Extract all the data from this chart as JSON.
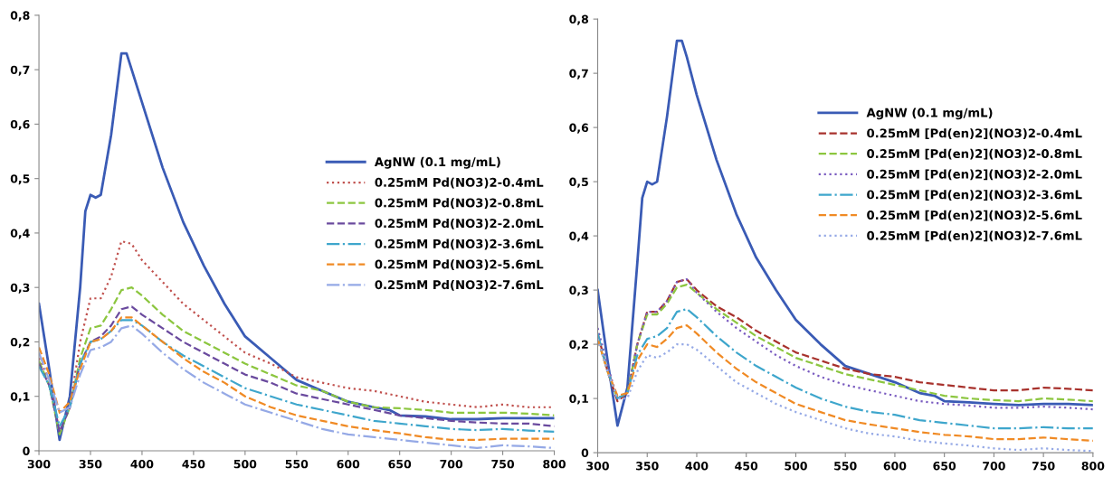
{
  "chart_data": [
    {
      "type": "line",
      "x": [
        300,
        310,
        320,
        330,
        340,
        350,
        360,
        370,
        380,
        390,
        400,
        420,
        440,
        460,
        480,
        500,
        525,
        550,
        575,
        600,
        625,
        650,
        675,
        700,
        725,
        750,
        775,
        800
      ],
      "xlim": [
        300,
        800
      ],
      "xticks": [
        300,
        350,
        400,
        450,
        500,
        550,
        600,
        650,
        700,
        750,
        800
      ],
      "ylim": [
        0,
        0.8
      ],
      "yticks": [
        0,
        {
          "value": 0.1,
          "label": "0,1"
        },
        {
          "value": 0.2,
          "label": "0,2"
        },
        {
          "value": 0.3,
          "label": "0,3"
        },
        {
          "value": 0.4,
          "label": "0,4"
        },
        {
          "value": 0.5,
          "label": "0,5"
        },
        {
          "value": 0.6,
          "label": "0,6"
        },
        {
          "value": 0.7,
          "label": "0,7"
        },
        {
          "value": 0.8,
          "label": "0,8"
        }
      ],
      "grid": false,
      "legend": "right",
      "series": [
        {
          "name": "AgNW (0.1 mg/mL)",
          "color": "#3a5bb5",
          "line_style": "solid",
          "x": [
            300,
            310,
            320,
            330,
            340,
            345,
            350,
            355,
            360,
            370,
            380,
            385,
            390,
            400,
            420,
            440,
            460,
            480,
            500,
            525,
            550,
            575,
            600,
            625,
            640,
            650,
            675,
            700,
            725,
            750,
            775,
            800
          ],
          "values": [
            0.27,
            0.15,
            0.02,
            0.1,
            0.3,
            0.44,
            0.47,
            0.465,
            0.47,
            0.58,
            0.73,
            0.73,
            0.7,
            0.64,
            0.52,
            0.42,
            0.34,
            0.27,
            0.21,
            0.17,
            0.13,
            0.11,
            0.09,
            0.08,
            0.075,
            0.065,
            0.063,
            0.058,
            0.058,
            0.06,
            0.06,
            0.06
          ]
        },
        {
          "name": "0.25mM Pd(NO3)2-0.4mL",
          "color": "#c0504d",
          "line_style": "dotted",
          "values": [
            0.17,
            0.13,
            0.035,
            0.08,
            0.2,
            0.28,
            0.28,
            0.32,
            0.385,
            0.38,
            0.35,
            0.31,
            0.27,
            0.24,
            0.21,
            0.18,
            0.16,
            0.135,
            0.125,
            0.115,
            0.11,
            0.1,
            0.09,
            0.085,
            0.08,
            0.085,
            0.08,
            0.08
          ]
        },
        {
          "name": "0.25mM Pd(NO3)2-0.8mL",
          "color": "#8cc63f",
          "line_style": "dashed",
          "values": [
            0.165,
            0.12,
            0.03,
            0.08,
            0.17,
            0.225,
            0.23,
            0.26,
            0.295,
            0.3,
            0.285,
            0.25,
            0.22,
            0.2,
            0.18,
            0.16,
            0.14,
            0.12,
            0.11,
            0.09,
            0.08,
            0.078,
            0.075,
            0.07,
            0.07,
            0.07,
            0.068,
            0.065
          ]
        },
        {
          "name": "0.25mM Pd(NO3)2-2.0mL",
          "color": "#6a4a9e",
          "line_style": "dashed",
          "values": [
            0.16,
            0.12,
            0.035,
            0.08,
            0.16,
            0.2,
            0.21,
            0.23,
            0.26,
            0.265,
            0.25,
            0.225,
            0.2,
            0.18,
            0.16,
            0.14,
            0.125,
            0.105,
            0.095,
            0.085,
            0.075,
            0.065,
            0.06,
            0.055,
            0.052,
            0.05,
            0.05,
            0.045
          ]
        },
        {
          "name": "0.25mM Pd(NO3)2-3.6mL",
          "color": "#3ea6cc",
          "line_style": "dashdot",
          "values": [
            0.155,
            0.12,
            0.045,
            0.08,
            0.16,
            0.2,
            0.205,
            0.22,
            0.24,
            0.24,
            0.23,
            0.2,
            0.175,
            0.155,
            0.135,
            0.115,
            0.1,
            0.085,
            0.075,
            0.065,
            0.055,
            0.05,
            0.045,
            0.04,
            0.038,
            0.04,
            0.037,
            0.035
          ]
        },
        {
          "name": "0.25mM Pd(NO3)2-5.6mL",
          "color": "#f08a24",
          "line_style": "dashed",
          "values": [
            0.19,
            0.14,
            0.07,
            0.09,
            0.15,
            0.2,
            0.205,
            0.22,
            0.245,
            0.245,
            0.23,
            0.2,
            0.17,
            0.145,
            0.125,
            0.1,
            0.08,
            0.065,
            0.055,
            0.045,
            0.038,
            0.032,
            0.025,
            0.02,
            0.02,
            0.022,
            0.022,
            0.022
          ]
        },
        {
          "name": "0.25mM Pd(NO3)2-7.6mL",
          "color": "#95a9e6",
          "line_style": "dashdot",
          "values": [
            0.18,
            0.13,
            0.07,
            0.08,
            0.14,
            0.185,
            0.19,
            0.2,
            0.225,
            0.23,
            0.215,
            0.18,
            0.15,
            0.125,
            0.105,
            0.085,
            0.07,
            0.055,
            0.04,
            0.03,
            0.025,
            0.02,
            0.015,
            0.01,
            0.005,
            0.01,
            0.008,
            0.005
          ]
        }
      ]
    },
    {
      "type": "line",
      "x": [
        300,
        310,
        320,
        330,
        340,
        350,
        360,
        370,
        380,
        390,
        400,
        420,
        440,
        460,
        480,
        500,
        525,
        550,
        575,
        600,
        625,
        650,
        675,
        700,
        725,
        750,
        775,
        800
      ],
      "xlim": [
        300,
        800
      ],
      "xticks": [
        300,
        350,
        400,
        450,
        500,
        550,
        600,
        650,
        700,
        750,
        800
      ],
      "ylim": [
        0,
        0.8
      ],
      "yticks": [
        0,
        {
          "value": 0.1,
          "label": "0,1"
        },
        {
          "value": 0.2,
          "label": "0,2"
        },
        {
          "value": 0.3,
          "label": "0,3"
        },
        {
          "value": 0.4,
          "label": "0,4"
        },
        {
          "value": 0.5,
          "label": "0,5"
        },
        {
          "value": 0.6,
          "label": "0,6"
        },
        {
          "value": 0.7,
          "label": "0,7"
        },
        {
          "value": 0.8,
          "label": "0,8"
        }
      ],
      "grid": false,
      "legend": "upper right",
      "series": [
        {
          "name": "AgNW (0.1 mg/mL)",
          "color": "#3a5bb5",
          "line_style": "solid",
          "x": [
            300,
            310,
            320,
            330,
            340,
            345,
            350,
            355,
            360,
            370,
            380,
            385,
            390,
            400,
            420,
            440,
            460,
            480,
            500,
            525,
            550,
            575,
            600,
            625,
            640,
            650,
            675,
            700,
            725,
            750,
            775,
            800
          ],
          "values": [
            0.3,
            0.17,
            0.05,
            0.12,
            0.35,
            0.47,
            0.5,
            0.495,
            0.5,
            0.62,
            0.76,
            0.76,
            0.73,
            0.66,
            0.54,
            0.44,
            0.36,
            0.3,
            0.245,
            0.2,
            0.16,
            0.145,
            0.13,
            0.11,
            0.105,
            0.095,
            0.093,
            0.09,
            0.088,
            0.09,
            0.09,
            0.088
          ]
        },
        {
          "name": "0.25mM [Pd(en)2](NO3)2-0.4mL",
          "color": "#a8322d",
          "line_style": "dashed",
          "values": [
            0.22,
            0.15,
            0.095,
            0.11,
            0.2,
            0.26,
            0.26,
            0.28,
            0.315,
            0.32,
            0.3,
            0.27,
            0.25,
            0.225,
            0.205,
            0.185,
            0.17,
            0.155,
            0.145,
            0.14,
            0.13,
            0.125,
            0.12,
            0.115,
            0.115,
            0.12,
            0.118,
            0.115
          ]
        },
        {
          "name": "0.25mM [Pd(en)2](NO3)2-0.8mL",
          "color": "#8cc63f",
          "line_style": "dashed",
          "values": [
            0.21,
            0.15,
            0.1,
            0.11,
            0.2,
            0.255,
            0.255,
            0.275,
            0.305,
            0.31,
            0.295,
            0.265,
            0.24,
            0.215,
            0.195,
            0.175,
            0.16,
            0.145,
            0.135,
            0.125,
            0.115,
            0.105,
            0.1,
            0.097,
            0.095,
            0.1,
            0.098,
            0.095
          ]
        },
        {
          "name": "0.25mM [Pd(en)2](NO3)2-2.0mL",
          "color": "#7a5cc0",
          "line_style": "dotted",
          "values": [
            0.23,
            0.16,
            0.1,
            0.11,
            0.2,
            0.26,
            0.26,
            0.28,
            0.315,
            0.32,
            0.295,
            0.26,
            0.23,
            0.205,
            0.18,
            0.16,
            0.14,
            0.125,
            0.115,
            0.105,
            0.095,
            0.09,
            0.087,
            0.083,
            0.083,
            0.085,
            0.083,
            0.08
          ]
        },
        {
          "name": "0.25mM [Pd(en)2](NO3)2-3.6mL",
          "color": "#3ea6cc",
          "line_style": "dashdot",
          "values": [
            0.22,
            0.15,
            0.1,
            0.11,
            0.18,
            0.21,
            0.215,
            0.23,
            0.26,
            0.265,
            0.25,
            0.215,
            0.185,
            0.16,
            0.14,
            0.12,
            0.1,
            0.085,
            0.075,
            0.07,
            0.06,
            0.055,
            0.05,
            0.045,
            0.045,
            0.047,
            0.045,
            0.045
          ]
        },
        {
          "name": "0.25mM [Pd(en)2](NO3)2-5.6mL",
          "color": "#f08a24",
          "line_style": "dashed",
          "values": [
            0.21,
            0.15,
            0.105,
            0.11,
            0.17,
            0.2,
            0.195,
            0.21,
            0.23,
            0.235,
            0.22,
            0.185,
            0.155,
            0.13,
            0.11,
            0.09,
            0.075,
            0.06,
            0.052,
            0.045,
            0.038,
            0.033,
            0.03,
            0.025,
            0.025,
            0.028,
            0.025,
            0.022
          ]
        },
        {
          "name": "0.25mM [Pd(en)2](NO3)2-7.6mL",
          "color": "#95a9e6",
          "line_style": "dotted",
          "values": [
            0.21,
            0.15,
            0.1,
            0.1,
            0.15,
            0.18,
            0.175,
            0.185,
            0.2,
            0.2,
            0.19,
            0.16,
            0.13,
            0.11,
            0.09,
            0.075,
            0.06,
            0.045,
            0.035,
            0.03,
            0.022,
            0.017,
            0.013,
            0.008,
            0.005,
            0.008,
            0.005,
            0.003
          ]
        }
      ]
    }
  ]
}
